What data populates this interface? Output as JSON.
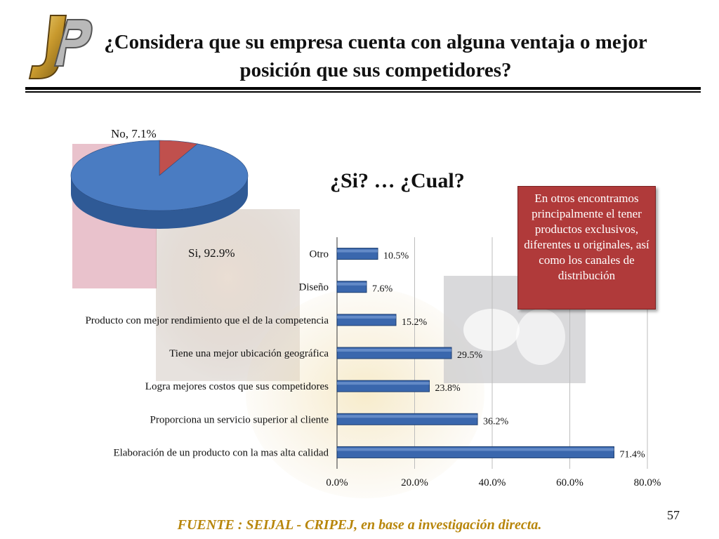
{
  "slide": {
    "title": "¿Considera que su empresa cuenta con alguna ventaja o mejor posición que sus competidores?",
    "subtitle": "¿Si? … ¿Cual?",
    "note": "En otros encontramos principalmente el tener productos exclusivos, diferentes u originales, así como los canales de distribución",
    "source": "FUENTE : SEIJAL - CRIPEJ, en base a investigación directa.",
    "page_number": "57",
    "logo_letters": "JP"
  },
  "colors": {
    "bar": "#3a67ad",
    "pie_yes": "#4a7cc2",
    "pie_no": "#c0504d",
    "note_bg": "#b03a3a",
    "source_text": "#b8860b"
  },
  "chart_data": [
    {
      "type": "pie",
      "labels": [
        "No, 7.1%",
        "Si, 92.9%"
      ],
      "categories": [
        "No",
        "Si"
      ],
      "values": [
        7.1,
        92.9
      ]
    },
    {
      "type": "bar",
      "orientation": "horizontal",
      "categories": [
        "Otro",
        "Diseño",
        "Producto con mejor rendimiento que el de la competencia",
        "Tiene una mejor ubicación geográfica",
        "Logra mejores costos que sus competidores",
        "Proporciona un servicio superior al cliente",
        "Elaboración de un producto con la mas alta calidad"
      ],
      "values": [
        10.5,
        7.6,
        15.2,
        29.5,
        23.8,
        36.2,
        71.4
      ],
      "data_labels": [
        "10.5%",
        "7.6%",
        "15.2%",
        "29.5%",
        "23.8%",
        "36.2%",
        "71.4%"
      ],
      "x_ticks": [
        "0.0%",
        "20.0%",
        "40.0%",
        "60.0%",
        "80.0%"
      ],
      "xlim": [
        0,
        80
      ],
      "grid": true
    }
  ]
}
